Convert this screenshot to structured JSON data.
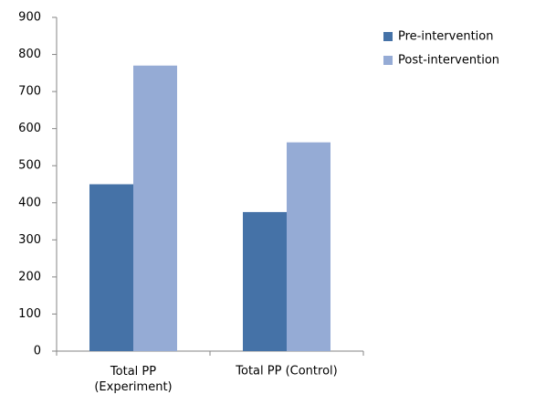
{
  "chart_data": {
    "type": "bar",
    "categories": [
      "Total PP\n(Experiment)",
      "Total PP (Control)"
    ],
    "series": [
      {
        "name": "Pre-intervention",
        "color": "#4572a7",
        "values": [
          450,
          375
        ]
      },
      {
        "name": "Post-intervention",
        "color": "#95abd5",
        "values": [
          770,
          563
        ]
      }
    ],
    "ylim": [
      0,
      900
    ],
    "yticks": [
      0,
      100,
      200,
      300,
      400,
      500,
      600,
      700,
      800,
      900
    ],
    "grid": false,
    "legend": "right"
  }
}
